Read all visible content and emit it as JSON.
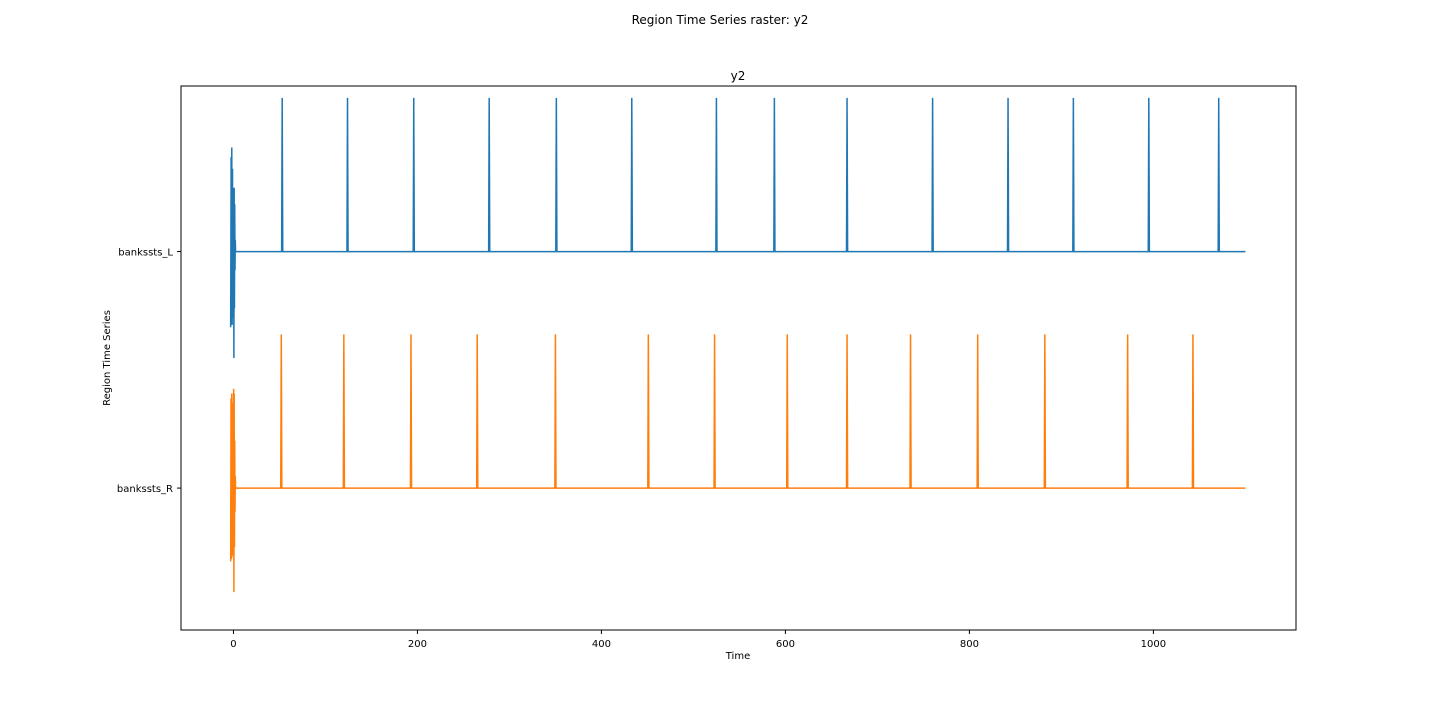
{
  "figure": {
    "suptitle": "Region Time Series raster: y2"
  },
  "chart_data": {
    "type": "line",
    "title": "y2",
    "xlabel": "Time",
    "ylabel": "Region Time Series",
    "xlim": [
      -57,
      1155
    ],
    "ylim": [
      -0.6,
      1.7
    ],
    "x_ticks": [
      0,
      200,
      400,
      600,
      800,
      1000
    ],
    "y_ticks": [
      {
        "label": "bankssts_L",
        "value": 1
      },
      {
        "label": "bankssts_R",
        "value": 0
      }
    ],
    "grid": false,
    "legend": "none",
    "x_end": 1100,
    "series": [
      {
        "color": "#1f77b4",
        "offset": 1,
        "baseline": 1,
        "spike_peak": 1.65,
        "spike_times": [
          53,
          124,
          196,
          278,
          351,
          433,
          525,
          588,
          667,
          760,
          842,
          913,
          995,
          1071
        ],
        "transient": [
          {
            "t": -3.0,
            "v": 0.68
          },
          {
            "t": -2.5,
            "v": 1.4
          },
          {
            "t": -2.2,
            "v": 0.7
          },
          {
            "t": -1.8,
            "v": 1.44
          },
          {
            "t": -1.4,
            "v": 0.69
          },
          {
            "t": -1.0,
            "v": 1.35
          },
          {
            "t": -0.7,
            "v": 0.72
          },
          {
            "t": -0.4,
            "v": 1.27
          },
          {
            "t": -0.1,
            "v": 0.73
          },
          {
            "t": 0.2,
            "v": 1.2
          },
          {
            "t": 0.5,
            "v": 0.55
          },
          {
            "t": 0.8,
            "v": 1.27
          },
          {
            "t": 1.1,
            "v": 0.76
          },
          {
            "t": 1.4,
            "v": 1.2
          },
          {
            "t": 1.7,
            "v": 0.92
          },
          {
            "t": 2.0,
            "v": 1.05
          },
          {
            "t": 2.3,
            "v": 1.0
          }
        ]
      },
      {
        "color": "#ff7f0e",
        "offset": 0,
        "baseline": 0,
        "spike_peak": 0.65,
        "spike_times": [
          52,
          120,
          193,
          265,
          350,
          451,
          523,
          602,
          667,
          736,
          809,
          882,
          972,
          1043
        ],
        "transient": [
          {
            "t": -3.0,
            "v": -0.31
          },
          {
            "t": -2.6,
            "v": 0.38
          },
          {
            "t": -2.2,
            "v": -0.3
          },
          {
            "t": -1.8,
            "v": 0.4
          },
          {
            "t": -1.4,
            "v": -0.29
          },
          {
            "t": -1.0,
            "v": 0.36
          },
          {
            "t": -0.7,
            "v": -0.28
          },
          {
            "t": -0.4,
            "v": 0.34
          },
          {
            "t": -0.1,
            "v": -0.27
          },
          {
            "t": 0.2,
            "v": 0.42
          },
          {
            "t": 0.5,
            "v": -0.44
          },
          {
            "t": 0.8,
            "v": 0.4
          },
          {
            "t": 1.1,
            "v": -0.25
          },
          {
            "t": 1.4,
            "v": 0.2
          },
          {
            "t": 1.7,
            "v": -0.1
          },
          {
            "t": 2.0,
            "v": 0.05
          },
          {
            "t": 2.3,
            "v": 0.0
          }
        ]
      }
    ]
  }
}
